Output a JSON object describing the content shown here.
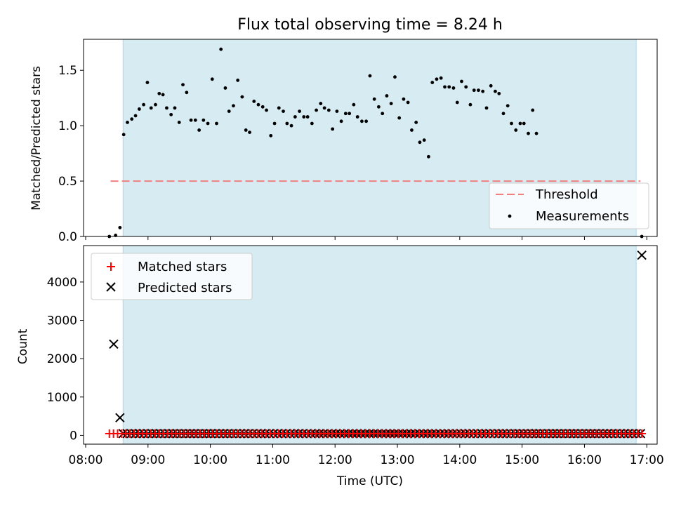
{
  "chart_data": [
    {
      "type": "scatter",
      "title": "Flux total observing time = 8.24 h",
      "xlabel": "",
      "ylabel": "Matched/Predicted stars",
      "xlim": [
        "08:00",
        "17:00"
      ],
      "xlim_hours": [
        8.0,
        17.2
      ],
      "ylim": [
        0,
        1.78
      ],
      "yticks": [
        0.0,
        0.5,
        1.0,
        1.5
      ],
      "ytick_labels": [
        "0.0",
        "0.5",
        "1.0",
        "1.5"
      ],
      "shaded_interval_hours": [
        8.6,
        16.83
      ],
      "shade_color": "#add8e6",
      "threshold": {
        "value": 0.5,
        "x_hours": [
          8.4,
          16.9
        ],
        "color": "#f08080"
      },
      "legend": {
        "position": "lower right",
        "entries": [
          "Threshold",
          "Measurements"
        ]
      },
      "series": [
        {
          "name": "Measurements",
          "color": "#000000",
          "points": [
            [
              8.38,
              0.0
            ],
            [
              8.48,
              0.01
            ],
            [
              8.55,
              0.08
            ],
            [
              8.61,
              0.92
            ],
            [
              8.67,
              1.03
            ],
            [
              8.74,
              1.06
            ],
            [
              8.8,
              1.09
            ],
            [
              8.86,
              1.15
            ],
            [
              8.93,
              1.19
            ],
            [
              8.99,
              1.39
            ],
            [
              9.05,
              1.16
            ],
            [
              9.12,
              1.19
            ],
            [
              9.18,
              1.29
            ],
            [
              9.24,
              1.28
            ],
            [
              9.3,
              1.16
            ],
            [
              9.37,
              1.1
            ],
            [
              9.43,
              1.16
            ],
            [
              9.5,
              1.03
            ],
            [
              9.56,
              1.37
            ],
            [
              9.62,
              1.3
            ],
            [
              9.69,
              1.05
            ],
            [
              9.76,
              1.05
            ],
            [
              9.82,
              0.96
            ],
            [
              9.89,
              1.05
            ],
            [
              9.96,
              1.02
            ],
            [
              10.03,
              1.42
            ],
            [
              10.1,
              1.02
            ],
            [
              10.17,
              1.69
            ],
            [
              10.24,
              1.34
            ],
            [
              10.3,
              1.13
            ],
            [
              10.37,
              1.18
            ],
            [
              10.44,
              1.41
            ],
            [
              10.51,
              1.26
            ],
            [
              10.57,
              0.96
            ],
            [
              10.63,
              0.94
            ],
            [
              10.7,
              1.22
            ],
            [
              10.77,
              1.19
            ],
            [
              10.84,
              1.17
            ],
            [
              10.9,
              1.14
            ],
            [
              10.97,
              0.91
            ],
            [
              11.03,
              1.02
            ],
            [
              11.1,
              1.16
            ],
            [
              11.17,
              1.13
            ],
            [
              11.23,
              1.02
            ],
            [
              11.3,
              1.0
            ],
            [
              11.36,
              1.08
            ],
            [
              11.43,
              1.13
            ],
            [
              11.5,
              1.08
            ],
            [
              11.56,
              1.08
            ],
            [
              11.63,
              1.02
            ],
            [
              11.7,
              1.14
            ],
            [
              11.77,
              1.2
            ],
            [
              11.83,
              1.16
            ],
            [
              11.9,
              1.14
            ],
            [
              11.96,
              0.97
            ],
            [
              12.03,
              1.13
            ],
            [
              12.1,
              1.04
            ],
            [
              12.17,
              1.11
            ],
            [
              12.23,
              1.11
            ],
            [
              12.3,
              1.19
            ],
            [
              12.36,
              1.08
            ],
            [
              12.43,
              1.04
            ],
            [
              12.5,
              1.04
            ],
            [
              12.56,
              1.45
            ],
            [
              12.63,
              1.24
            ],
            [
              12.7,
              1.17
            ],
            [
              12.76,
              1.11
            ],
            [
              12.83,
              1.27
            ],
            [
              12.9,
              1.2
            ],
            [
              12.96,
              1.44
            ],
            [
              13.03,
              1.07
            ],
            [
              13.1,
              1.24
            ],
            [
              13.17,
              1.21
            ],
            [
              13.23,
              0.96
            ],
            [
              13.3,
              1.03
            ],
            [
              13.36,
              0.85
            ],
            [
              13.43,
              0.87
            ],
            [
              13.5,
              0.72
            ],
            [
              13.56,
              1.39
            ],
            [
              13.63,
              1.42
            ],
            [
              13.7,
              1.43
            ],
            [
              13.76,
              1.35
            ],
            [
              13.83,
              1.35
            ],
            [
              13.9,
              1.34
            ],
            [
              13.96,
              1.21
            ],
            [
              14.03,
              1.4
            ],
            [
              14.1,
              1.35
            ],
            [
              14.17,
              1.19
            ],
            [
              14.23,
              1.32
            ],
            [
              14.3,
              1.32
            ],
            [
              14.37,
              1.31
            ],
            [
              14.43,
              1.16
            ],
            [
              14.5,
              1.36
            ],
            [
              14.57,
              1.31
            ],
            [
              14.63,
              1.29
            ],
            [
              14.7,
              1.11
            ],
            [
              14.77,
              1.18
            ],
            [
              14.83,
              1.02
            ],
            [
              14.9,
              0.96
            ],
            [
              14.97,
              1.02
            ],
            [
              15.03,
              1.02
            ],
            [
              15.1,
              0.93
            ],
            [
              15.17,
              1.14
            ],
            [
              15.23,
              0.93
            ],
            [
              16.92,
              0.0
            ]
          ]
        }
      ]
    },
    {
      "type": "scatter",
      "title": "",
      "xlabel": "Time (UTC)",
      "ylabel": "Count",
      "xlim": [
        "08:00",
        "17:00"
      ],
      "xlim_hours": [
        8.0,
        17.2
      ],
      "ylim": [
        -230,
        4950
      ],
      "yticks": [
        0,
        1000,
        2000,
        3000,
        4000
      ],
      "ytick_labels": [
        "0",
        "1000",
        "2000",
        "3000",
        "4000"
      ],
      "xticks_hours": [
        8,
        9,
        10,
        11,
        12,
        13,
        14,
        15,
        16,
        17
      ],
      "xtick_labels": [
        "08:00",
        "09:00",
        "10:00",
        "11:00",
        "12:00",
        "13:00",
        "14:00",
        "15:00",
        "16:00",
        "17:00"
      ],
      "shaded_interval_hours": [
        8.6,
        16.83
      ],
      "shade_color": "#add8e6",
      "legend": {
        "position": "upper left",
        "entries": [
          "Matched stars",
          "Predicted stars"
        ]
      },
      "series": [
        {
          "name": "Matched stars",
          "color": "#ff0000",
          "marker": "+",
          "x_range_hours": [
            8.38,
            16.92
          ],
          "typical_value": 45,
          "count": 130
        },
        {
          "name": "Predicted stars",
          "color": "#000000",
          "marker": "x",
          "outliers": [
            [
              8.45,
              2380
            ],
            [
              8.55,
              460
            ],
            [
              16.92,
              4700
            ]
          ],
          "x_range_hours": [
            8.6,
            16.9
          ],
          "typical_value": 45,
          "count": 125
        }
      ]
    }
  ]
}
